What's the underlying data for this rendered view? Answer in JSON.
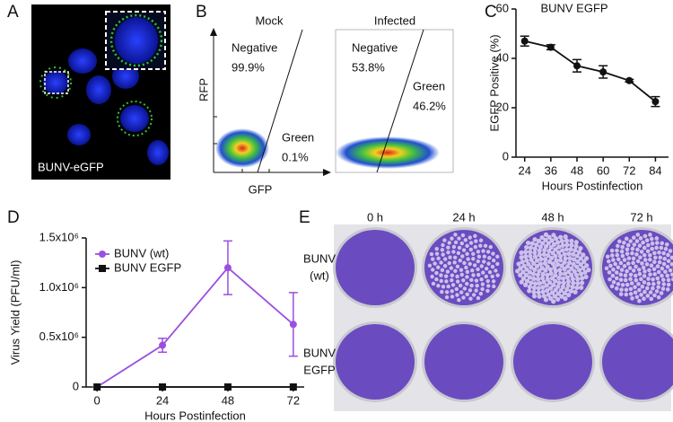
{
  "panels": {
    "A": {
      "letter": "A",
      "label": "BUNV-eGFP"
    },
    "B": {
      "letter": "B",
      "y_label": "RFP",
      "x_label": "GFP",
      "plots": [
        {
          "title": "Mock",
          "gates": [
            {
              "name": "Negative",
              "percent": "99.9%"
            },
            {
              "name": "Green",
              "percent": "0.1%"
            }
          ]
        },
        {
          "title": "Infected",
          "gates": [
            {
              "name": "Negative",
              "percent": "53.8%"
            },
            {
              "name": "Green",
              "percent": "46.2%"
            }
          ]
        }
      ]
    },
    "E": {
      "letter": "E",
      "columns": [
        "0 h",
        "24 h",
        "48 h",
        "72 h"
      ],
      "rows": [
        [
          "BUNV",
          "(wt)"
        ],
        [
          "BUNV",
          "EGFP"
        ]
      ]
    }
  },
  "chart_data": [
    {
      "type": "line",
      "label": "C",
      "title": "BUNV EGFP",
      "x_label": "Hours Postinfection",
      "y_label": "EGFP Positive (%)",
      "x": [
        24,
        36,
        48,
        60,
        72,
        84
      ],
      "values": [
        47,
        44.5,
        37,
        34.5,
        31,
        22.5
      ],
      "errors": [
        2,
        1,
        2.5,
        2.5,
        0.5,
        2
      ],
      "color": "#111111",
      "marker": "circle",
      "xlim": [
        20,
        90
      ],
      "xticks": [
        24,
        36,
        48,
        60,
        72,
        84
      ],
      "ylim": [
        0,
        60
      ],
      "yticks": [
        0,
        20,
        40,
        60
      ]
    },
    {
      "type": "line",
      "label": "D",
      "x_label": "Hours Postinfection",
      "y_label": "Virus Yield (PFU/ml)",
      "x": [
        0,
        24,
        48,
        72
      ],
      "series": [
        {
          "name": "BUNV (wt)",
          "color": "#9b4fe0",
          "marker": "circle",
          "values": [
            0,
            420000,
            1200000,
            630000
          ],
          "errors": [
            0,
            70000,
            270000,
            320000
          ]
        },
        {
          "name": "BUNV EGFP",
          "color": "#111111",
          "marker": "square",
          "values": [
            0,
            0,
            0,
            0
          ]
        }
      ],
      "legend": "upper left",
      "xlim": [
        -4,
        76
      ],
      "xticks": [
        0,
        24,
        48,
        72
      ],
      "ylim": [
        0,
        1500000
      ],
      "yticks": [
        0,
        {
          "value": 500000,
          "label": "0.5x10⁶"
        },
        {
          "value": 1000000,
          "label": "1.0x10⁶"
        },
        {
          "value": 1500000,
          "label": "1.5x10⁶"
        }
      ]
    }
  ]
}
